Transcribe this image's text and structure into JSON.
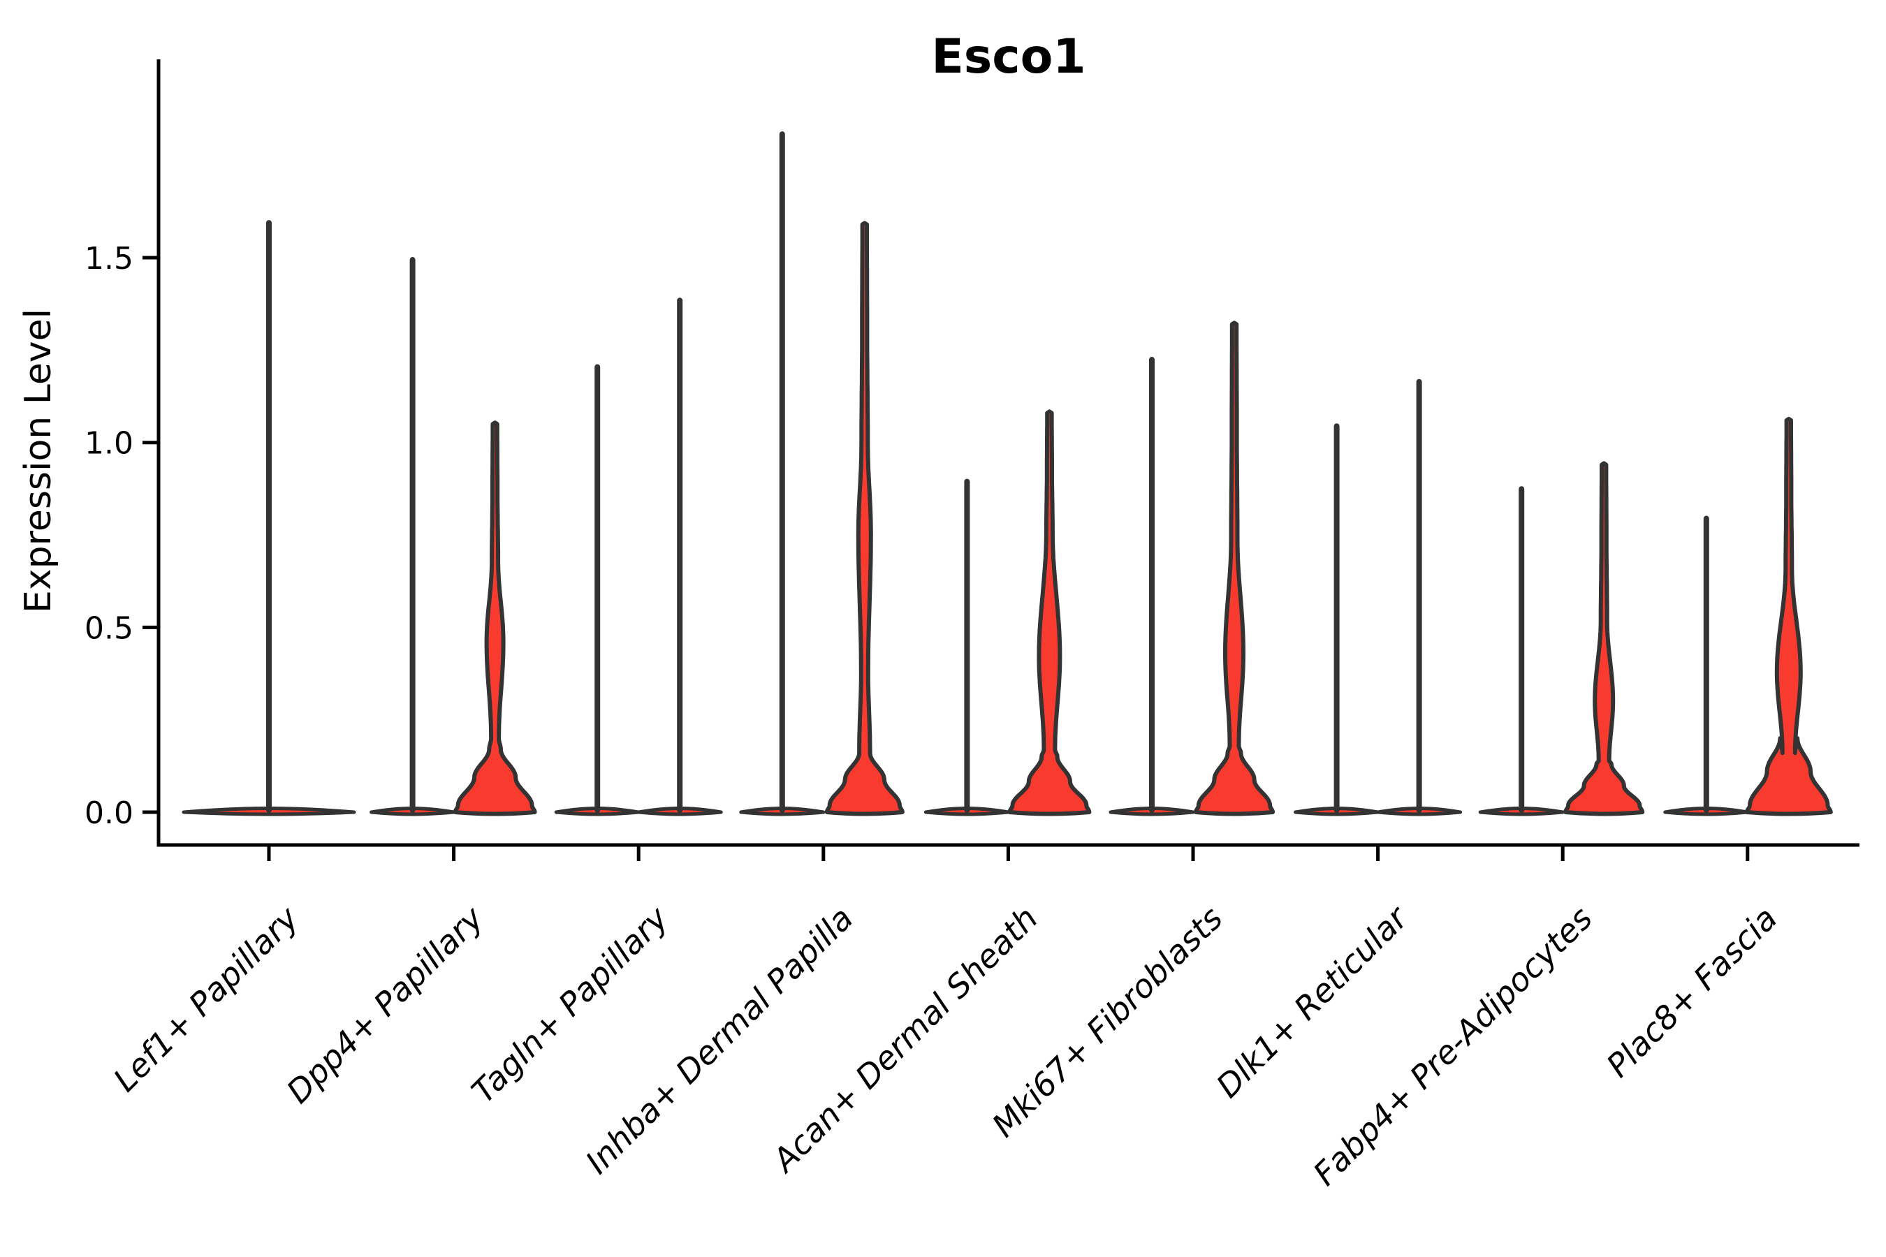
{
  "title": "Esco1",
  "axes": {
    "ylabel": "Expression Level",
    "ytick_labels": [
      "0.0",
      "0.5",
      "1.0",
      "1.5"
    ]
  },
  "colors": {
    "violin_fill": "#f83b2e",
    "violin_outline": "#333333",
    "axis": "#000000",
    "background": "#ffffff"
  },
  "chart_data": {
    "type": "violin",
    "title": "Esco1",
    "xlabel": "",
    "ylabel": "Expression Level",
    "yticks": [
      0.0,
      0.5,
      1.0,
      1.5
    ],
    "ylim": [
      -0.09,
      2.04
    ],
    "grid": false,
    "legend": null,
    "categories": [
      "Lef1+ Papillary",
      "Dpp4+ Papillary",
      "Tagln+ Papillary",
      "Inhba+ Dermal Papilla",
      "Acan+ Dermal Sheath",
      "Mki67+ Fibroblasts",
      "Dlk1+ Reticular",
      "Fabp4+ Pre-Adipocytes",
      "Plac8+ Fascia"
    ],
    "violins_per_category": [
      1,
      2,
      2,
      2,
      2,
      2,
      2,
      2,
      2
    ],
    "categories_detail": [
      {
        "label": "Lef1+ Papillary",
        "violins": [
          {
            "side": "center",
            "shape": "spike",
            "max": 1.6
          }
        ]
      },
      {
        "label": "Dpp4+ Papillary",
        "violins": [
          {
            "side": "left",
            "shape": "spike",
            "max": 1.5
          },
          {
            "side": "right",
            "shape": "bulged",
            "max": 1.05,
            "bulge": {
              "top": 0.68,
              "peak": 0.46,
              "peak_hw": 12,
              "neck": 0.2,
              "neck_hw": 5.5,
              "blob_top": 0.17,
              "base_hw": 57
            }
          }
        ]
      },
      {
        "label": "Tagln+ Papillary",
        "violins": [
          {
            "side": "left",
            "shape": "spike",
            "max": 1.21
          },
          {
            "side": "right",
            "shape": "spike",
            "max": 1.39
          }
        ]
      },
      {
        "label": "Inhba+ Dermal Papilla",
        "violins": [
          {
            "side": "left",
            "shape": "spike",
            "max": 1.84
          },
          {
            "side": "right",
            "shape": "bulged",
            "max": 1.59,
            "bulge": {
              "top": 1.0,
              "peak": 0.75,
              "peak_hw": 9,
              "neck": 0.38,
              "neck_hw": 5,
              "blob_top": 0.16,
              "base_hw": 54
            }
          }
        ]
      },
      {
        "label": "Acan+ Dermal Sheath",
        "violins": [
          {
            "side": "left",
            "shape": "spike",
            "max": 0.9
          },
          {
            "side": "right",
            "shape": "bulged",
            "max": 1.08,
            "bulge": {
              "top": 0.76,
              "peak": 0.42,
              "peak_hw": 15,
              "neck": 0.17,
              "neck_hw": 8,
              "blob_top": 0.15,
              "base_hw": 57
            }
          }
        ]
      },
      {
        "label": "Mki67+ Fibroblasts",
        "violins": [
          {
            "side": "left",
            "shape": "spike",
            "max": 1.23
          },
          {
            "side": "right",
            "shape": "bulged",
            "max": 1.32,
            "bulge": {
              "top": 0.74,
              "peak": 0.43,
              "peak_hw": 13,
              "neck": 0.18,
              "neck_hw": 6.5,
              "blob_top": 0.16,
              "base_hw": 55
            }
          }
        ]
      },
      {
        "label": "Dlk1+ Reticular",
        "violins": [
          {
            "side": "left",
            "shape": "spike",
            "max": 1.05
          },
          {
            "side": "right",
            "shape": "spike",
            "max": 1.17
          }
        ]
      },
      {
        "label": "Fabp4+ Pre-Adipocytes",
        "violins": [
          {
            "side": "left",
            "shape": "spike",
            "max": 0.88
          },
          {
            "side": "right",
            "shape": "bulged",
            "max": 0.94,
            "bulge": {
              "top": 0.52,
              "peak": 0.3,
              "peak_hw": 13,
              "neck": 0.14,
              "neck_hw": 7.5,
              "blob_top": 0.13,
              "base_hw": 55
            }
          }
        ]
      },
      {
        "label": "Plac8+ Fascia",
        "violins": [
          {
            "side": "left",
            "shape": "spike",
            "max": 0.8
          },
          {
            "side": "right",
            "shape": "bulged",
            "max": 1.06,
            "bulge": {
              "top": 0.66,
              "peak": 0.38,
              "peak_hw": 17,
              "neck": 0.16,
              "neck_hw": 9,
              "blob_top": 0.2,
              "base_hw": 60
            }
          }
        ]
      }
    ]
  }
}
